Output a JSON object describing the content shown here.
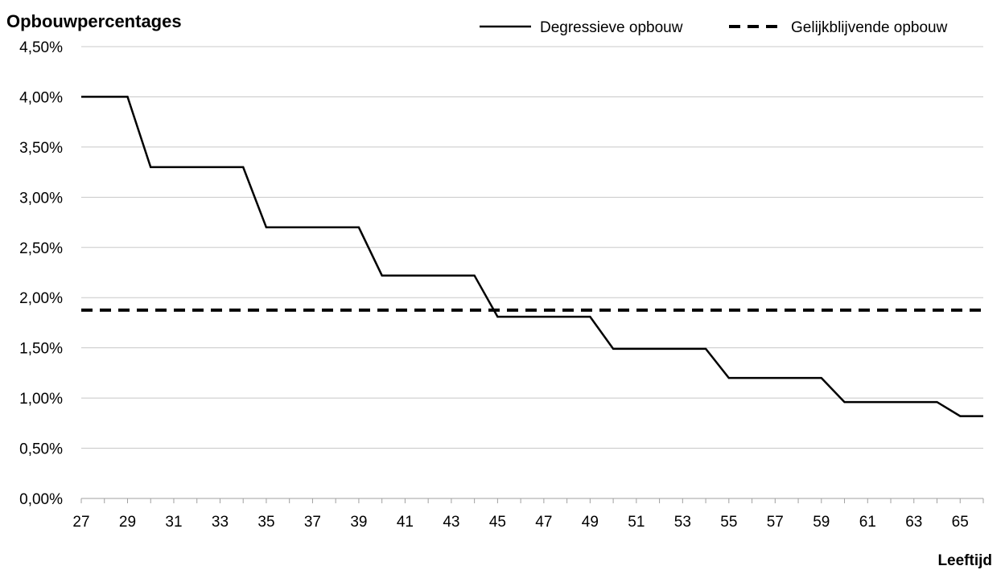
{
  "chart_data": {
    "type": "line",
    "title": "Opbouwpercentages",
    "xlabel": "Leeftijd",
    "ylabel": "",
    "x": [
      27,
      28,
      29,
      30,
      31,
      32,
      33,
      34,
      35,
      36,
      37,
      38,
      39,
      40,
      41,
      42,
      43,
      44,
      45,
      46,
      47,
      48,
      49,
      50,
      51,
      52,
      53,
      54,
      55,
      56,
      57,
      58,
      59,
      60,
      61,
      62,
      63,
      64,
      65,
      66
    ],
    "xlim": [
      27,
      66
    ],
    "x_tick_labels": [
      "27",
      "29",
      "31",
      "33",
      "35",
      "37",
      "39",
      "41",
      "43",
      "45",
      "47",
      "49",
      "51",
      "53",
      "55",
      "57",
      "59",
      "61",
      "63",
      "65"
    ],
    "ylim": [
      0,
      4.5
    ],
    "y_tick_labels": [
      "0,00%",
      "0,50%",
      "1,00%",
      "1,50%",
      "2,00%",
      "2,50%",
      "3,00%",
      "3,50%",
      "4,00%",
      "4,50%"
    ],
    "grid": true,
    "legend_position": "top-right",
    "series": [
      {
        "name": "Degressieve opbouw",
        "style": "solid",
        "color": "#000000",
        "values": [
          4.0,
          4.0,
          4.0,
          3.3,
          3.3,
          3.3,
          3.3,
          3.3,
          2.7,
          2.7,
          2.7,
          2.7,
          2.7,
          2.22,
          2.22,
          2.22,
          2.22,
          2.22,
          1.81,
          1.81,
          1.81,
          1.81,
          1.81,
          1.49,
          1.49,
          1.49,
          1.49,
          1.49,
          1.2,
          1.2,
          1.2,
          1.2,
          1.2,
          0.96,
          0.96,
          0.96,
          0.96,
          0.96,
          0.82,
          0.82
        ]
      },
      {
        "name": "Gelijkblijvende opbouw",
        "style": "dashed",
        "color": "#000000",
        "values": [
          1.875,
          1.875,
          1.875,
          1.875,
          1.875,
          1.875,
          1.875,
          1.875,
          1.875,
          1.875,
          1.875,
          1.875,
          1.875,
          1.875,
          1.875,
          1.875,
          1.875,
          1.875,
          1.875,
          1.875,
          1.875,
          1.875,
          1.875,
          1.875,
          1.875,
          1.875,
          1.875,
          1.875,
          1.875,
          1.875,
          1.875,
          1.875,
          1.875,
          1.875,
          1.875,
          1.875,
          1.875,
          1.875,
          1.875,
          1.875
        ]
      }
    ]
  }
}
